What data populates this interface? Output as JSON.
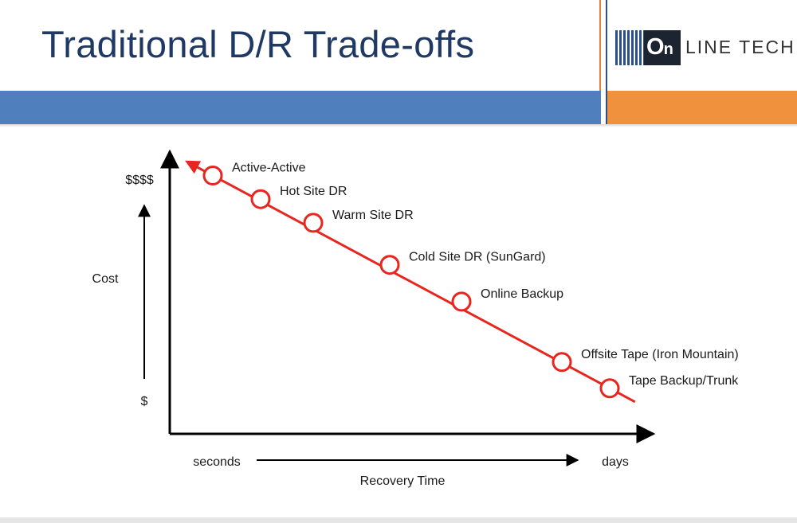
{
  "slide": {
    "title": "Traditional D/R Trade-offs",
    "logo": {
      "part1": "O",
      "part1b": "n",
      "part2": "LINE TECH"
    },
    "colors": {
      "title": "#1f3864",
      "blue_band": "#4f7fbd",
      "orange_band": "#f0913e"
    }
  },
  "chart_data": {
    "type": "scatter",
    "title": "",
    "xlabel": "Recovery Time",
    "ylabel": "Cost",
    "x_axis_ends": {
      "min_label": "seconds",
      "max_label": "days"
    },
    "y_axis_ends": {
      "min_label": "$",
      "max_label": "$$$$"
    },
    "xlim": [
      0,
      100
    ],
    "ylim": [
      0,
      100
    ],
    "grid": false,
    "series_color": "#e8251f",
    "points": [
      {
        "label": "Active-Active",
        "x": 9,
        "y": 95
      },
      {
        "label": "Hot Site DR",
        "x": 19,
        "y": 86
      },
      {
        "label": "Warm Site DR",
        "x": 30,
        "y": 77
      },
      {
        "label": "Cold Site DR (SunGard)",
        "x": 46,
        "y": 61
      },
      {
        "label": "Online Backup",
        "x": 61,
        "y": 47
      },
      {
        "label": "Offsite Tape (Iron Mountain)",
        "x": 82,
        "y": 24
      },
      {
        "label": "Tape Backup/Trunk",
        "x": 92,
        "y": 14
      }
    ]
  }
}
